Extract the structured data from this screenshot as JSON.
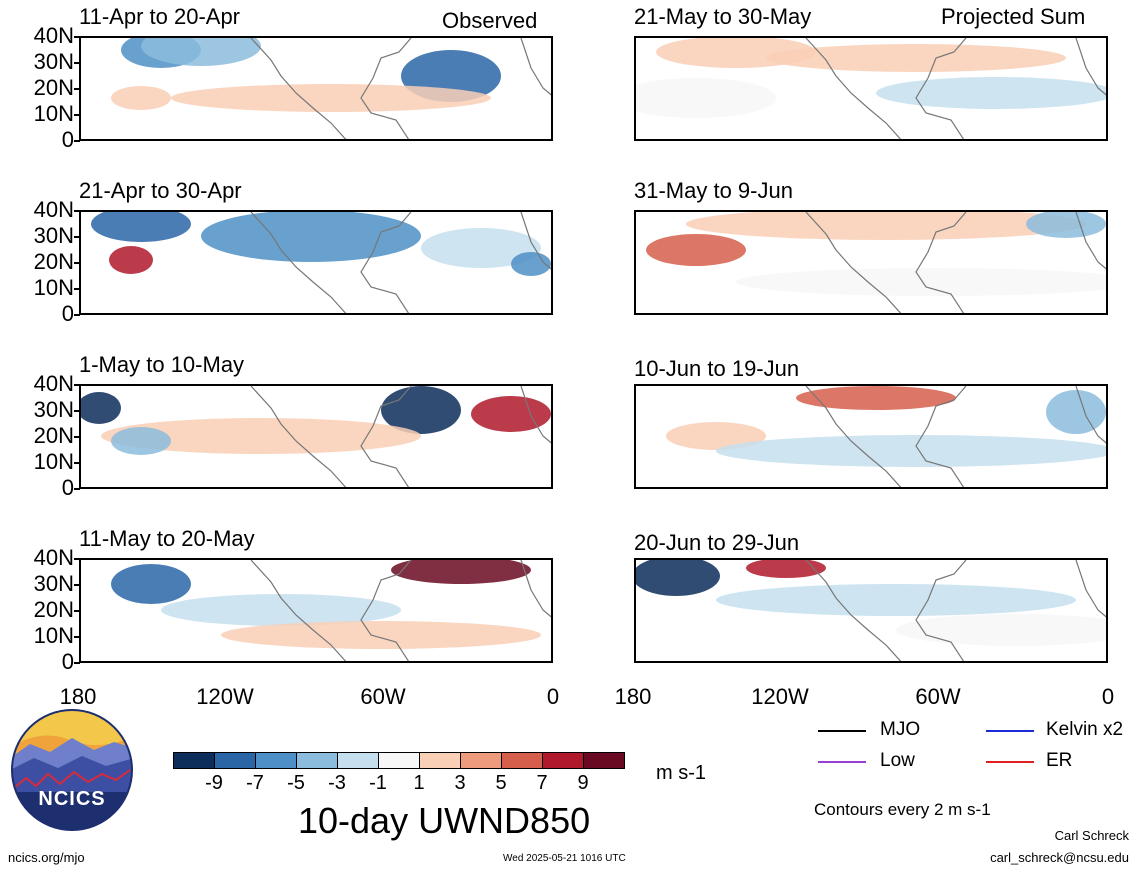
{
  "header": {
    "left_label": "Observed",
    "right_label": "Projected Sum"
  },
  "panels": [
    {
      "title": "11-Apr to 20-Apr"
    },
    {
      "title": "21-May to 30-May"
    },
    {
      "title": "21-Apr to 30-Apr"
    },
    {
      "title": "31-May to 9-Jun"
    },
    {
      "title": "1-May to 10-May"
    },
    {
      "title": "10-Jun to 19-Jun"
    },
    {
      "title": "11-May to 20-May"
    },
    {
      "title": "20-Jun to 29-Jun"
    }
  ],
  "y_ticks": [
    "40N",
    "30N",
    "20N",
    "10N",
    "0"
  ],
  "x_ticks": [
    "180",
    "120W",
    "60W",
    "0"
  ],
  "colorbar": {
    "labels": [
      "-9",
      "-7",
      "-5",
      "-3",
      "-1",
      "1",
      "3",
      "5",
      "7",
      "9"
    ],
    "colors": [
      "#0d2d5a",
      "#2a66a6",
      "#4d8fc6",
      "#8cbcdd",
      "#c6dfef",
      "#f7f7f7",
      "#f9cfb6",
      "#ee9a7c",
      "#d65f4c",
      "#b0192c",
      "#6a0a22"
    ],
    "unit": "m s-1",
    "title": "10-day UWND850"
  },
  "legend": {
    "items": [
      {
        "label": "MJO",
        "color": "#000000"
      },
      {
        "label": "Kelvin x2",
        "color": "#1a2bd6"
      },
      {
        "label": "Low",
        "color": "#9a3fd9"
      },
      {
        "label": "ER",
        "color": "#e02020"
      }
    ],
    "contour_note": "Contours every 2 m s-1"
  },
  "footer": {
    "logo_text": "NCICS",
    "url": "ncics.org/mjo",
    "timestamp": "Wed 2025-05-21 1016 UTC",
    "author": "Carl Schreck",
    "email": "carl_schreck@ncsu.edu"
  }
}
